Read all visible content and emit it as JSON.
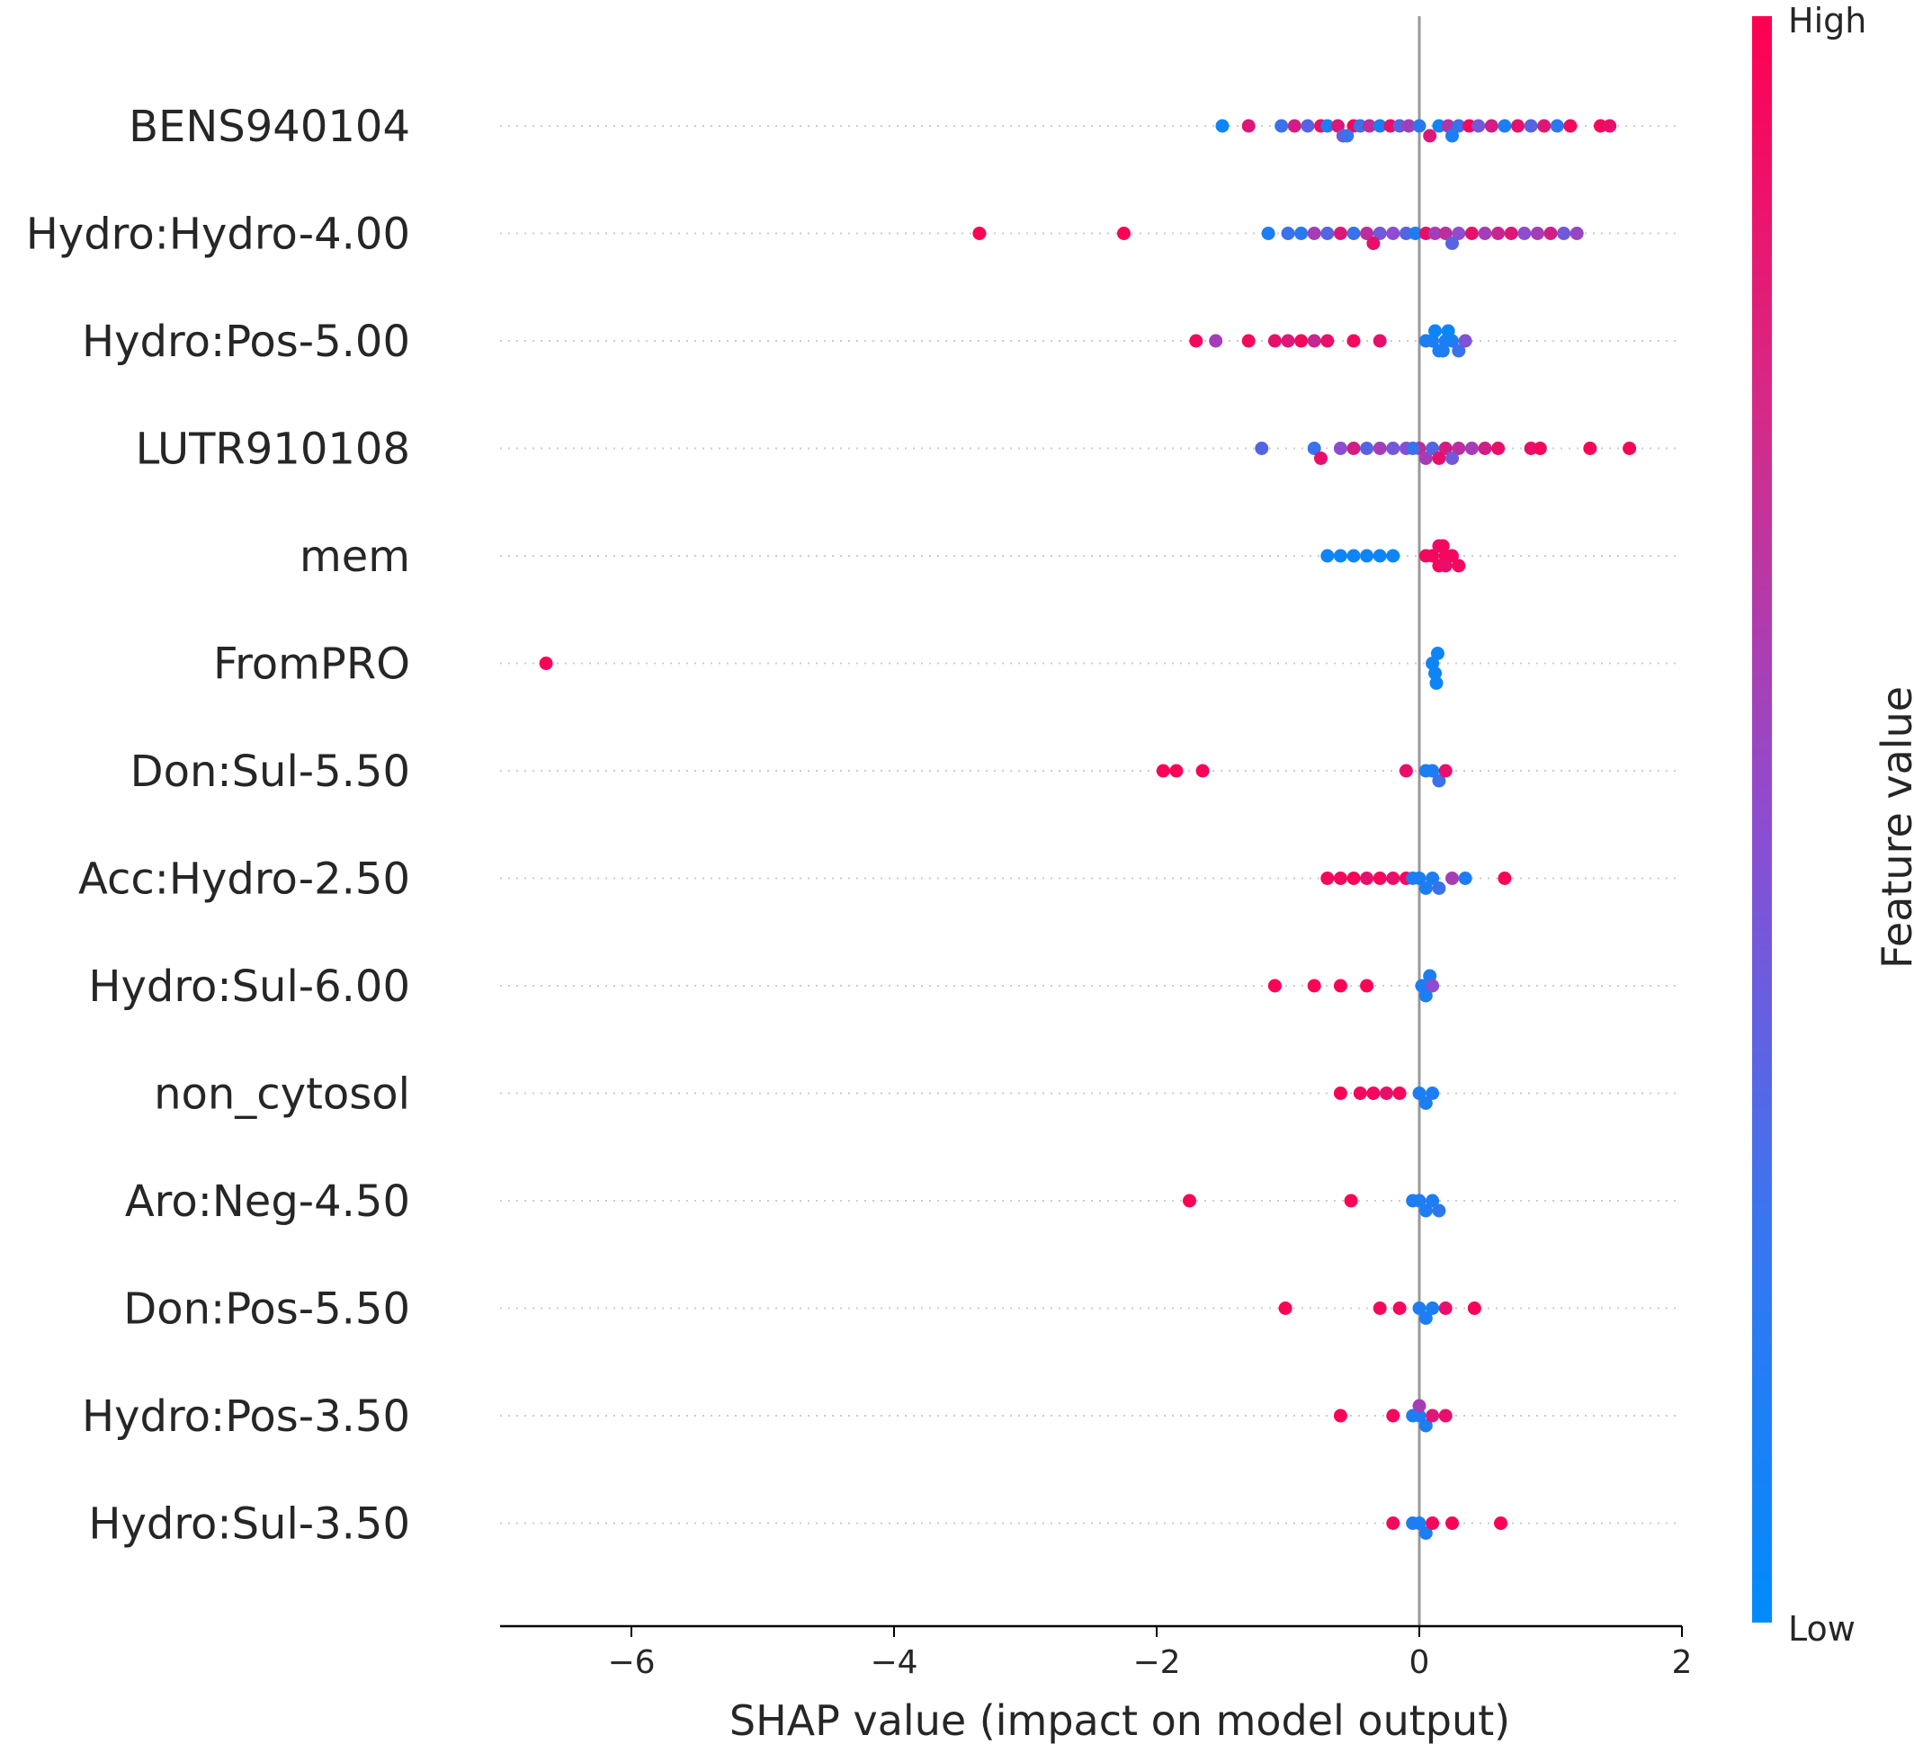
{
  "chart_data": {
    "type": "scatter",
    "title": "",
    "xlabel": "SHAP value (impact on model output)",
    "ylabel": "",
    "xlim": [
      -7.0,
      2.0
    ],
    "xticks": [
      -6,
      -4,
      -2,
      0,
      2
    ],
    "xtick_labels": [
      "−6",
      "−4",
      "−2",
      "0",
      "2"
    ],
    "colors": {
      "high": "#ff0051",
      "low": "#008bfb",
      "axis": "#000000",
      "zero_line": "#999999",
      "row_line": "#cccccc"
    },
    "colorbar": {
      "title": "Feature value",
      "high_label": "High",
      "low_label": "Low"
    },
    "features": [
      {
        "name": "BENS940104",
        "points": [
          [
            -1.5,
            0.05
          ],
          [
            -1.3,
            0.85
          ],
          [
            -1.05,
            0.2
          ],
          [
            -0.95,
            0.8
          ],
          [
            -0.85,
            0.3
          ],
          [
            -0.75,
            0.9
          ],
          [
            -0.7,
            0.1
          ],
          [
            -0.62,
            0.85
          ],
          [
            -0.58,
            0.4
          ],
          [
            -0.5,
            0.95
          ],
          [
            -0.45,
            0.2
          ],
          [
            -0.38,
            0.7
          ],
          [
            -0.3,
            0.1
          ],
          [
            -0.22,
            0.9
          ],
          [
            -0.15,
            0.3
          ],
          [
            -0.08,
            0.6
          ],
          [
            0.0,
            0.15
          ],
          [
            0.08,
            0.85
          ],
          [
            0.15,
            0.05
          ],
          [
            0.22,
            0.65
          ],
          [
            0.3,
            0.2
          ],
          [
            0.38,
            0.95
          ],
          [
            0.45,
            0.4
          ],
          [
            0.55,
            0.8
          ],
          [
            0.65,
            0.1
          ],
          [
            0.75,
            0.9
          ],
          [
            0.85,
            0.3
          ],
          [
            0.95,
            0.85
          ],
          [
            1.05,
            0.15
          ],
          [
            1.15,
            0.95
          ],
          [
            1.38,
            0.95
          ],
          [
            1.45,
            0.9
          ],
          [
            -0.55,
            0.2
          ],
          [
            0.25,
            0.1
          ]
        ]
      },
      {
        "name": "Hydro:Hydro-4.00",
        "points": [
          [
            -3.35,
            0.98
          ],
          [
            -2.25,
            0.98
          ],
          [
            -1.15,
            0.1
          ],
          [
            -1.0,
            0.2
          ],
          [
            -0.9,
            0.15
          ],
          [
            -0.8,
            0.6
          ],
          [
            -0.7,
            0.3
          ],
          [
            -0.6,
            0.85
          ],
          [
            -0.5,
            0.2
          ],
          [
            -0.4,
            0.7
          ],
          [
            -0.3,
            0.4
          ],
          [
            -0.2,
            0.5
          ],
          [
            -0.1,
            0.3
          ],
          [
            -0.03,
            0.1
          ],
          [
            0.05,
            0.9
          ],
          [
            0.12,
            0.6
          ],
          [
            0.2,
            0.7
          ],
          [
            0.3,
            0.5
          ],
          [
            0.4,
            0.9
          ],
          [
            0.5,
            0.6
          ],
          [
            0.6,
            0.75
          ],
          [
            0.7,
            0.85
          ],
          [
            0.8,
            0.5
          ],
          [
            0.9,
            0.6
          ],
          [
            1.0,
            0.8
          ],
          [
            1.1,
            0.4
          ],
          [
            1.2,
            0.55
          ],
          [
            -0.35,
            0.9
          ],
          [
            0.25,
            0.3
          ]
        ]
      },
      {
        "name": "Hydro:Pos-5.00",
        "points": [
          [
            -1.7,
            0.95
          ],
          [
            -1.55,
            0.6
          ],
          [
            -1.3,
            0.95
          ],
          [
            -1.1,
            0.9
          ],
          [
            -1.0,
            0.85
          ],
          [
            -0.9,
            0.95
          ],
          [
            -0.8,
            0.75
          ],
          [
            -0.7,
            0.9
          ],
          [
            -0.5,
            0.95
          ],
          [
            -0.3,
            0.9
          ],
          [
            0.05,
            0.1
          ],
          [
            0.1,
            0.1
          ],
          [
            0.15,
            0.1
          ],
          [
            0.2,
            0.1
          ],
          [
            0.25,
            0.1
          ],
          [
            0.3,
            0.2
          ],
          [
            0.35,
            0.45
          ],
          [
            0.12,
            0.05
          ],
          [
            0.18,
            0.1
          ],
          [
            0.22,
            0.05
          ]
        ]
      },
      {
        "name": "LUTR910108",
        "points": [
          [
            -1.2,
            0.3
          ],
          [
            -0.8,
            0.2
          ],
          [
            -0.75,
            0.9
          ],
          [
            -0.6,
            0.5
          ],
          [
            -0.5,
            0.8
          ],
          [
            -0.4,
            0.3
          ],
          [
            -0.3,
            0.6
          ],
          [
            -0.2,
            0.4
          ],
          [
            -0.1,
            0.5
          ],
          [
            0.0,
            0.7
          ],
          [
            0.05,
            0.6
          ],
          [
            0.1,
            0.3
          ],
          [
            0.2,
            0.8
          ],
          [
            0.3,
            0.7
          ],
          [
            0.4,
            0.6
          ],
          [
            0.5,
            0.8
          ],
          [
            0.6,
            0.9
          ],
          [
            0.85,
            0.9
          ],
          [
            0.92,
            0.95
          ],
          [
            1.3,
            0.98
          ],
          [
            1.6,
            0.98
          ],
          [
            -0.05,
            0.2
          ],
          [
            0.15,
            0.9
          ],
          [
            0.25,
            0.4
          ]
        ]
      },
      {
        "name": "mem",
        "points": [
          [
            -0.7,
            0.05
          ],
          [
            -0.6,
            0.05
          ],
          [
            -0.5,
            0.05
          ],
          [
            -0.4,
            0.05
          ],
          [
            -0.3,
            0.05
          ],
          [
            -0.2,
            0.05
          ],
          [
            0.05,
            0.95
          ],
          [
            0.1,
            0.95
          ],
          [
            0.15,
            0.95
          ],
          [
            0.2,
            0.95
          ],
          [
            0.25,
            0.95
          ],
          [
            0.3,
            0.95
          ],
          [
            0.2,
            0.9
          ],
          [
            0.15,
            0.9
          ],
          [
            0.18,
            0.95
          ]
        ]
      },
      {
        "name": "FromPRO",
        "points": [
          [
            -6.65,
            0.98
          ],
          [
            0.1,
            0.05
          ],
          [
            0.12,
            0.05
          ],
          [
            0.14,
            0.05
          ],
          [
            0.13,
            0.05
          ]
        ]
      },
      {
        "name": "Don:Sul-5.50",
        "points": [
          [
            -1.95,
            0.98
          ],
          [
            -1.85,
            0.98
          ],
          [
            -1.65,
            0.98
          ],
          [
            -0.1,
            0.9
          ],
          [
            0.05,
            0.1
          ],
          [
            0.1,
            0.1
          ],
          [
            0.15,
            0.2
          ],
          [
            0.2,
            0.9
          ]
        ]
      },
      {
        "name": "Acc:Hydro-2.50",
        "points": [
          [
            -0.7,
            0.95
          ],
          [
            -0.6,
            0.95
          ],
          [
            -0.5,
            0.98
          ],
          [
            -0.4,
            0.9
          ],
          [
            -0.3,
            0.95
          ],
          [
            -0.2,
            0.9
          ],
          [
            -0.1,
            0.95
          ],
          [
            -0.05,
            0.1
          ],
          [
            0.0,
            0.1
          ],
          [
            0.05,
            0.1
          ],
          [
            0.1,
            0.1
          ],
          [
            0.15,
            0.2
          ],
          [
            0.25,
            0.6
          ],
          [
            0.35,
            0.1
          ],
          [
            0.65,
            0.98
          ]
        ]
      },
      {
        "name": "Hydro:Sul-6.00",
        "points": [
          [
            -1.1,
            0.98
          ],
          [
            -0.8,
            0.98
          ],
          [
            -0.6,
            0.98
          ],
          [
            -0.4,
            0.98
          ],
          [
            0.02,
            0.1
          ],
          [
            0.05,
            0.1
          ],
          [
            0.08,
            0.1
          ],
          [
            0.1,
            0.5
          ]
        ]
      },
      {
        "name": "non_cytosol",
        "points": [
          [
            -0.6,
            0.98
          ],
          [
            -0.45,
            0.95
          ],
          [
            -0.35,
            0.95
          ],
          [
            -0.25,
            0.9
          ],
          [
            -0.15,
            0.95
          ],
          [
            0.0,
            0.1
          ],
          [
            0.05,
            0.1
          ],
          [
            0.1,
            0.1
          ]
        ]
      },
      {
        "name": "Aro:Neg-4.50",
        "points": [
          [
            -1.75,
            0.98
          ],
          [
            -0.52,
            0.98
          ],
          [
            -0.05,
            0.1
          ],
          [
            0.0,
            0.1
          ],
          [
            0.05,
            0.1
          ],
          [
            0.1,
            0.1
          ],
          [
            0.15,
            0.15
          ]
        ]
      },
      {
        "name": "Don:Pos-5.50",
        "points": [
          [
            -1.02,
            0.98
          ],
          [
            -0.3,
            0.95
          ],
          [
            -0.15,
            0.95
          ],
          [
            0.0,
            0.1
          ],
          [
            0.05,
            0.1
          ],
          [
            0.1,
            0.1
          ],
          [
            0.2,
            0.9
          ],
          [
            0.42,
            0.98
          ]
        ]
      },
      {
        "name": "Hydro:Pos-3.50",
        "points": [
          [
            -0.6,
            0.98
          ],
          [
            -0.2,
            0.95
          ],
          [
            -0.05,
            0.1
          ],
          [
            0.0,
            0.1
          ],
          [
            0.05,
            0.1
          ],
          [
            0.1,
            0.85
          ],
          [
            0.2,
            0.9
          ],
          [
            0.0,
            0.6
          ]
        ]
      },
      {
        "name": "Hydro:Sul-3.50",
        "points": [
          [
            -0.2,
            0.95
          ],
          [
            -0.05,
            0.1
          ],
          [
            0.0,
            0.1
          ],
          [
            0.05,
            0.1
          ],
          [
            0.1,
            0.95
          ],
          [
            0.25,
            0.98
          ],
          [
            0.62,
            0.98
          ]
        ]
      }
    ]
  }
}
